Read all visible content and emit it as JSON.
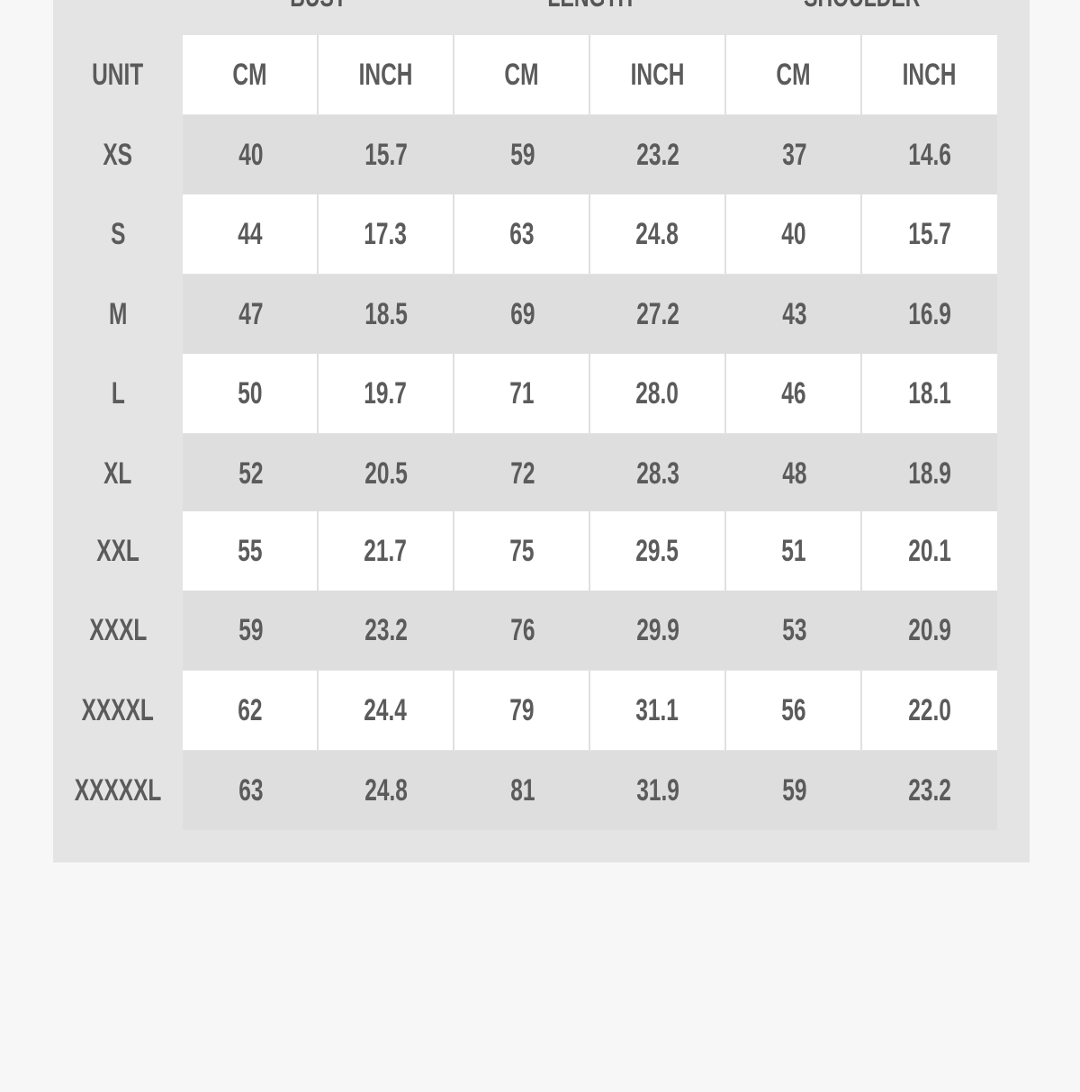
{
  "groups": [
    "BUST",
    "LENGTH",
    "SHOULDER"
  ],
  "header": {
    "label": "UNIT",
    "units": [
      "CM",
      "INCH",
      "CM",
      "INCH",
      "CM",
      "INCH"
    ]
  },
  "rows": [
    {
      "size": "XS",
      "values": [
        "40",
        "15.7",
        "59",
        "23.2",
        "37",
        "14.6"
      ]
    },
    {
      "size": "S",
      "values": [
        "44",
        "17.3",
        "63",
        "24.8",
        "40",
        "15.7"
      ]
    },
    {
      "size": "M",
      "values": [
        "47",
        "18.5",
        "69",
        "27.2",
        "43",
        "16.9"
      ]
    },
    {
      "size": "L",
      "values": [
        "50",
        "19.7",
        "71",
        "28.0",
        "46",
        "18.1"
      ]
    },
    {
      "size": "XL",
      "values": [
        "52",
        "20.5",
        "72",
        "28.3",
        "48",
        "18.9"
      ]
    },
    {
      "size": "XXL",
      "values": [
        "55",
        "21.7",
        "75",
        "29.5",
        "51",
        "20.1"
      ]
    },
    {
      "size": "XXXL",
      "values": [
        "59",
        "23.2",
        "76",
        "29.9",
        "53",
        "20.9"
      ]
    },
    {
      "size": "XXXXL",
      "values": [
        "62",
        "24.4",
        "79",
        "31.1",
        "56",
        "22.0"
      ]
    },
    {
      "size": "XXXXXL",
      "values": [
        "63",
        "24.8",
        "81",
        "31.9",
        "59",
        "23.2"
      ]
    }
  ]
}
